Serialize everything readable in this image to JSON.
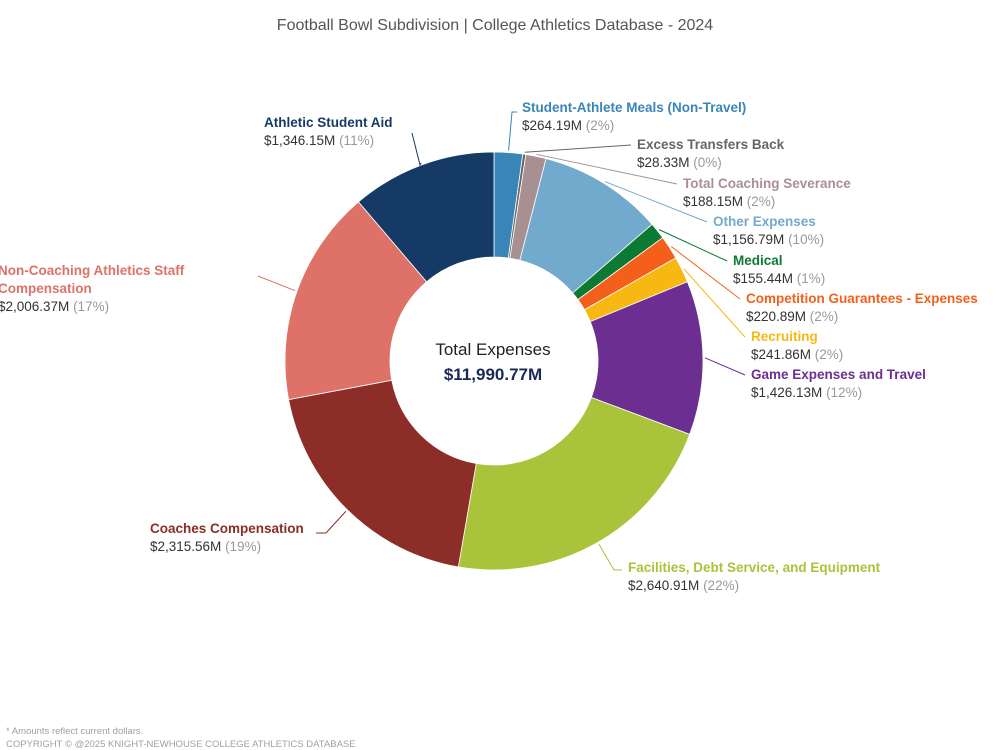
{
  "chart_data": {
    "type": "pie",
    "title": "Football Bowl Subdivision | College Athletics Database - 2024",
    "center_label": "Total Expenses",
    "center_value": "$11,990.77M",
    "slices": [
      {
        "name": "Student-Athlete Meals (Non-Travel)",
        "value": 264.19,
        "value_label": "$264.19M",
        "pct_label": "(2%)",
        "color": "#3a85b8"
      },
      {
        "name": "Excess Transfers Back",
        "value": 28.33,
        "value_label": "$28.33M",
        "pct_label": "(0%)",
        "color": "#666666"
      },
      {
        "name": "Total Coaching Severance",
        "value": 188.15,
        "value_label": "$188.15M",
        "pct_label": "(2%)",
        "color": "#a89092"
      },
      {
        "name": "Other Expenses",
        "value": 1156.79,
        "value_label": "$1,156.79M",
        "pct_label": "(10%)",
        "color": "#72aacd"
      },
      {
        "name": "Medical",
        "value": 155.44,
        "value_label": "$155.44M",
        "pct_label": "(1%)",
        "color": "#0d7a33"
      },
      {
        "name": "Competition Guarantees - Expenses",
        "value": 220.89,
        "value_label": "$220.89M",
        "pct_label": "(2%)",
        "color": "#f4601c"
      },
      {
        "name": "Recruiting",
        "value": 241.86,
        "value_label": "$241.86M",
        "pct_label": "(2%)",
        "color": "#f7b811"
      },
      {
        "name": "Game Expenses and Travel",
        "value": 1426.13,
        "value_label": "$1,426.13M",
        "pct_label": "(12%)",
        "color": "#6c2f91"
      },
      {
        "name": "Facilities, Debt Service, and Equipment",
        "value": 2640.91,
        "value_label": "$2,640.91M",
        "pct_label": "(22%)",
        "color": "#a9c43a"
      },
      {
        "name": "Coaches Compensation",
        "value": 2315.56,
        "value_label": "$2,315.56M",
        "pct_label": "(19%)",
        "color": "#8c2d27"
      },
      {
        "name": "Non-Coaching Athletics Staff Compensation",
        "value": 2006.37,
        "value_label": "$2,006.37M",
        "pct_label": "(17%)",
        "color": "#de7268"
      },
      {
        "name": "Athletic Student Aid",
        "value": 1346.15,
        "value_label": "$1,346.15M",
        "pct_label": "(11%)",
        "color": "#163a66"
      }
    ]
  },
  "footer": {
    "note": "* Amounts reflect current dollars.",
    "copyright": "COPYRIGHT © @2025 KNIGHT-NEWHOUSE COLLEGE ATHLETICS DATABASE"
  }
}
